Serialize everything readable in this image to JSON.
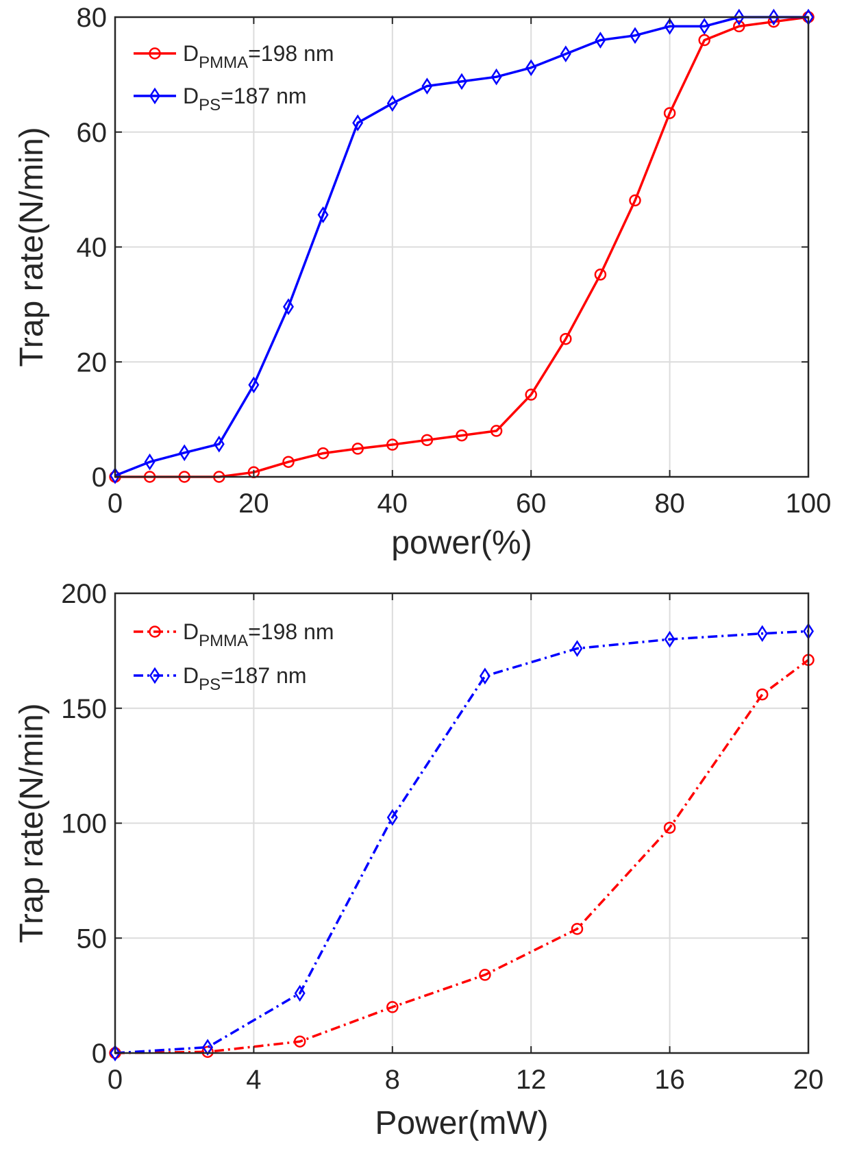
{
  "chart_data": [
    {
      "type": "line",
      "xlabel": "power(%)",
      "ylabel": "Trap rate(N/min)",
      "xlim": [
        0,
        100
      ],
      "ylim": [
        0,
        80
      ],
      "xticks": [
        0,
        20,
        40,
        60,
        80,
        100
      ],
      "yticks": [
        0,
        20,
        40,
        60,
        80
      ],
      "x_tick_labels": [
        "0",
        "20",
        "40",
        "60",
        "80",
        "100"
      ],
      "y_tick_labels": [
        "0",
        "20",
        "40",
        "60",
        "80"
      ],
      "grid": true,
      "legend_position": "top-left",
      "series": [
        {
          "name": "D_PMMA=198 nm",
          "legend_main": "D",
          "legend_sub": "PMMA",
          "legend_rest": "=198 nm",
          "color": "#ff0000",
          "marker": "circle",
          "line_style": "solid",
          "x": [
            0,
            5,
            10,
            15,
            20,
            25,
            30,
            35,
            40,
            45,
            50,
            55,
            60,
            65,
            70,
            75,
            80,
            85,
            90,
            95,
            100
          ],
          "y": [
            0,
            0,
            0,
            0,
            0.8,
            2.6,
            4.1,
            4.9,
            5.6,
            6.4,
            7.2,
            8,
            14.3,
            24,
            35.2,
            48.1,
            63.3,
            76,
            78.4,
            79.2,
            80
          ]
        },
        {
          "name": "D_PS=187 nm",
          "legend_main": "D",
          "legend_sub": "PS",
          "legend_rest": "=187 nm",
          "color": "#0000ff",
          "marker": "diamond",
          "line_style": "solid",
          "x": [
            0,
            5,
            10,
            15,
            20,
            25,
            30,
            35,
            40,
            45,
            50,
            55,
            60,
            65,
            70,
            75,
            80,
            85,
            90,
            95,
            100
          ],
          "y": [
            0.2,
            2.6,
            4.2,
            5.7,
            16,
            29.6,
            45.6,
            61.6,
            65,
            68,
            68.8,
            69.6,
            71.2,
            73.6,
            76,
            76.8,
            78.4,
            78.4,
            80,
            80,
            80
          ]
        }
      ]
    },
    {
      "type": "line",
      "xlabel": "Power(mW)",
      "ylabel": "Trap rate(N/min)",
      "xlim": [
        0,
        20
      ],
      "ylim": [
        0,
        200
      ],
      "xticks": [
        0,
        4,
        8,
        12,
        16,
        20
      ],
      "yticks": [
        0,
        50,
        100,
        150,
        200
      ],
      "x_tick_labels": [
        "0",
        "4",
        "8",
        "12",
        "16",
        "20"
      ],
      "y_tick_labels": [
        "0",
        "50",
        "100",
        "150",
        "200"
      ],
      "grid": true,
      "legend_position": "top-left",
      "series": [
        {
          "name": "D_PMMA=198 nm",
          "legend_main": "D",
          "legend_sub": "PMMA",
          "legend_rest": "=198 nm",
          "color": "#ff0000",
          "marker": "circle",
          "line_style": "dash-dot",
          "x": [
            0,
            2.67,
            5.33,
            8,
            10.67,
            13.33,
            16,
            18.67,
            20
          ],
          "y": [
            0,
            0.5,
            5,
            20,
            34,
            54,
            98,
            156,
            171
          ]
        },
        {
          "name": "D_PS=187 nm",
          "legend_main": "D",
          "legend_sub": "PS",
          "legend_rest": "=187 nm",
          "color": "#0000ff",
          "marker": "diamond",
          "line_style": "dash-dot",
          "x": [
            0,
            2.67,
            5.33,
            8,
            10.67,
            13.33,
            16,
            18.67,
            20
          ],
          "y": [
            0,
            2.5,
            26,
            102.5,
            164,
            176,
            180,
            182.5,
            183.5
          ]
        }
      ]
    }
  ]
}
